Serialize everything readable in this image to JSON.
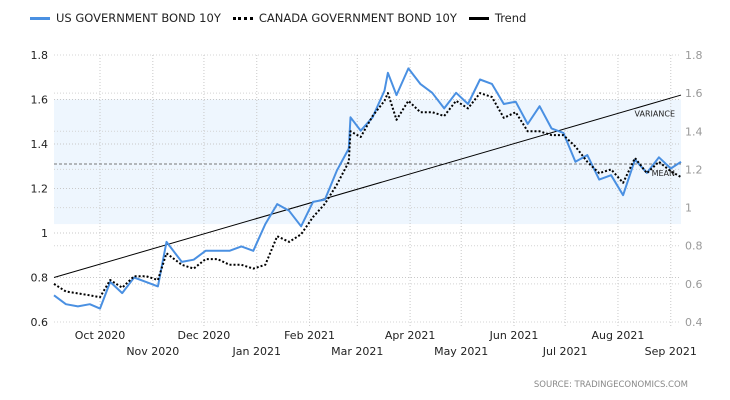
{
  "chart_data": {
    "type": "line",
    "legend": [
      {
        "name": "US GOVERNMENT BOND 10Y",
        "color": "#4a90e2",
        "style": "solid"
      },
      {
        "name": "CANADA GOVERNMENT BOND 10Y",
        "color": "#000000",
        "style": "dotted"
      },
      {
        "name": "Trend",
        "color": "#000000",
        "style": "solid"
      }
    ],
    "legend_position": "top-left",
    "x_domain": [
      "2020-09-04",
      "2021-09-07"
    ],
    "x_ticks": [
      {
        "label": "Oct 2020",
        "date": "2020-10-01",
        "row": 1
      },
      {
        "label": "Nov 2020",
        "date": "2020-11-01",
        "row": 2
      },
      {
        "label": "Dec 2020",
        "date": "2020-12-01",
        "row": 1
      },
      {
        "label": "Jan 2021",
        "date": "2021-01-01",
        "row": 2
      },
      {
        "label": "Feb 2021",
        "date": "2021-02-01",
        "row": 1
      },
      {
        "label": "Mar 2021",
        "date": "2021-03-01",
        "row": 2
      },
      {
        "label": "Apr 2021",
        "date": "2021-04-01",
        "row": 1
      },
      {
        "label": "May 2021",
        "date": "2021-05-01",
        "row": 2
      },
      {
        "label": "Jun 2021",
        "date": "2021-06-01",
        "row": 1
      },
      {
        "label": "Jul 2021",
        "date": "2021-07-01",
        "row": 2
      },
      {
        "label": "Aug 2021",
        "date": "2021-08-01",
        "row": 1
      },
      {
        "label": "Sep 2021",
        "date": "2021-09-01",
        "row": 2
      }
    ],
    "left_axis": {
      "ylim": [
        0.6,
        1.8
      ],
      "ticks": [
        "0.6",
        "0.8",
        "1",
        "1.2",
        "1.4",
        "1.6",
        "1.8"
      ]
    },
    "right_axis": {
      "ylim": [
        0.4,
        1.8
      ],
      "ticks": [
        "0.4",
        "0.6",
        "0.8",
        "1",
        "1.2",
        "1.4",
        "1.6",
        "1.8"
      ]
    },
    "grid": true,
    "dates": [
      "2020-09-04",
      "2020-09-11",
      "2020-09-18",
      "2020-09-25",
      "2020-10-01",
      "2020-10-07",
      "2020-10-14",
      "2020-10-21",
      "2020-10-28",
      "2020-11-04",
      "2020-11-09",
      "2020-11-18",
      "2020-11-25",
      "2020-12-02",
      "2020-12-09",
      "2020-12-16",
      "2020-12-23",
      "2020-12-30",
      "2021-01-06",
      "2021-01-13",
      "2021-01-20",
      "2021-01-27",
      "2021-02-03",
      "2021-02-10",
      "2021-02-17",
      "2021-02-24",
      "2021-02-25",
      "2021-03-03",
      "2021-03-10",
      "2021-03-17",
      "2021-03-19",
      "2021-03-24",
      "2021-03-31",
      "2021-04-07",
      "2021-04-14",
      "2021-04-21",
      "2021-04-28",
      "2021-05-05",
      "2021-05-12",
      "2021-05-19",
      "2021-05-26",
      "2021-06-02",
      "2021-06-09",
      "2021-06-16",
      "2021-06-23",
      "2021-06-30",
      "2021-07-07",
      "2021-07-14",
      "2021-07-21",
      "2021-07-28",
      "2021-08-04",
      "2021-08-11",
      "2021-08-18",
      "2021-08-25",
      "2021-09-01",
      "2021-09-07"
    ],
    "series": [
      {
        "name": "US GOVERNMENT BOND 10Y",
        "axis": "left",
        "values": [
          0.72,
          0.68,
          0.67,
          0.68,
          0.66,
          0.78,
          0.73,
          0.8,
          0.78,
          0.76,
          0.96,
          0.87,
          0.88,
          0.92,
          0.92,
          0.92,
          0.94,
          0.92,
          1.04,
          1.13,
          1.1,
          1.03,
          1.14,
          1.15,
          1.28,
          1.38,
          1.52,
          1.46,
          1.52,
          1.64,
          1.72,
          1.62,
          1.74,
          1.67,
          1.63,
          1.56,
          1.63,
          1.58,
          1.69,
          1.67,
          1.58,
          1.59,
          1.49,
          1.57,
          1.47,
          1.45,
          1.32,
          1.35,
          1.24,
          1.26,
          1.17,
          1.33,
          1.27,
          1.34,
          1.29,
          1.32
        ]
      },
      {
        "name": "CANADA GOVERNMENT BOND 10Y",
        "axis": "right",
        "values": [
          0.6,
          0.56,
          0.55,
          0.54,
          0.53,
          0.62,
          0.58,
          0.64,
          0.64,
          0.62,
          0.76,
          0.7,
          0.68,
          0.73,
          0.73,
          0.7,
          0.7,
          0.68,
          0.7,
          0.85,
          0.82,
          0.86,
          0.95,
          1.02,
          1.12,
          1.24,
          1.4,
          1.37,
          1.48,
          1.56,
          1.6,
          1.46,
          1.56,
          1.5,
          1.5,
          1.48,
          1.56,
          1.52,
          1.6,
          1.58,
          1.47,
          1.5,
          1.4,
          1.4,
          1.38,
          1.38,
          1.32,
          1.24,
          1.18,
          1.2,
          1.13,
          1.26,
          1.18,
          1.24,
          1.19,
          1.16
        ]
      }
    ],
    "trend": {
      "start": 0.8,
      "end": 1.62,
      "axis": "left"
    },
    "variance_band": {
      "low": 1.04,
      "high": 1.6,
      "axis": "left",
      "label": "VARIANCE"
    },
    "mean": {
      "value": 1.31,
      "axis": "left",
      "label": "MEAN"
    },
    "source": "SOURCE:  TRADINGECONOMICS.COM"
  }
}
